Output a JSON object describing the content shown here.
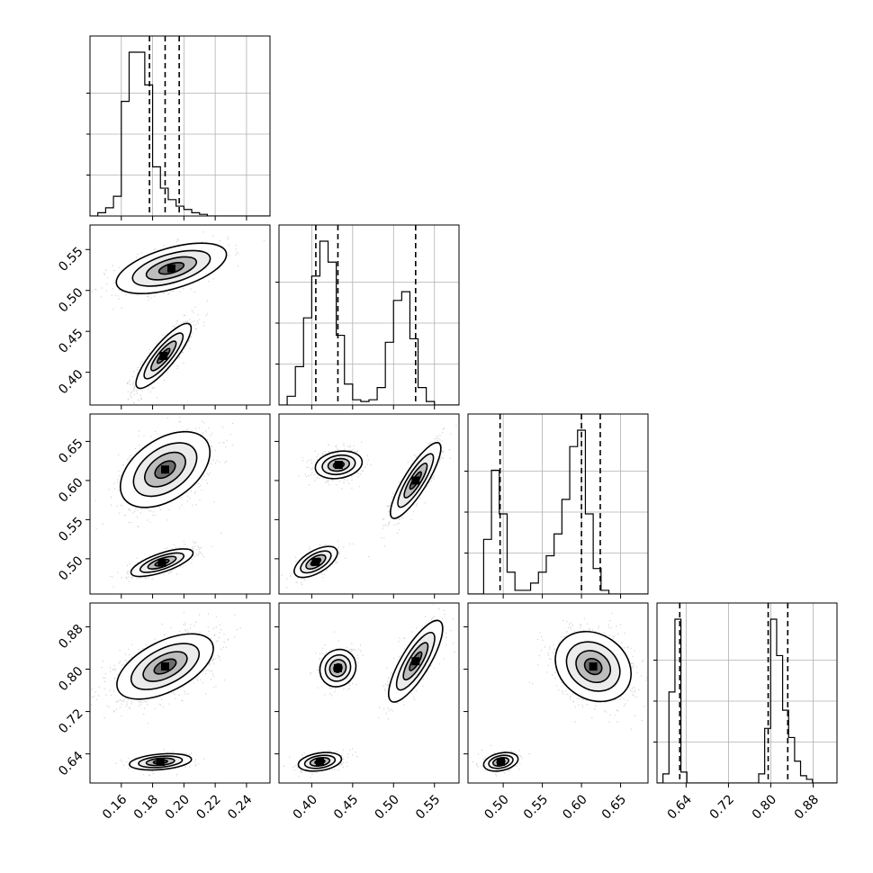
{
  "chart_data": {
    "type": "corner",
    "title": "",
    "parameters": [
      {
        "range": [
          0.14,
          0.255
        ],
        "ticks": [
          0.16,
          0.18,
          0.2,
          0.22,
          0.24
        ],
        "tick_labels": [
          "0.16",
          "0.18",
          "0.20",
          "0.22",
          "0.24"
        ]
      },
      {
        "range": [
          0.36,
          0.58
        ],
        "ticks": [
          0.4,
          0.45,
          0.5,
          0.55
        ],
        "tick_labels": [
          "0.40",
          "0.45",
          "0.50",
          "0.55"
        ]
      },
      {
        "range": [
          0.455,
          0.685
        ],
        "ticks": [
          0.5,
          0.55,
          0.6,
          0.65
        ],
        "tick_labels": [
          "0.50",
          "0.55",
          "0.60",
          "0.65"
        ]
      },
      {
        "range": [
          0.585,
          0.925
        ],
        "ticks": [
          0.64,
          0.72,
          0.8,
          0.88
        ],
        "tick_labels": [
          "0.64",
          "0.72",
          "0.80",
          "0.88"
        ]
      }
    ],
    "quantiles": [
      [
        0.178,
        0.188,
        0.197
      ],
      [
        0.405,
        0.432,
        0.527
      ],
      [
        0.496,
        0.6,
        0.624
      ],
      [
        0.628,
        0.795,
        0.832
      ]
    ],
    "histograms": [
      {
        "bin_start": 0.14,
        "bin_width": 0.005,
        "counts": [
          0,
          2,
          5,
          12,
          70,
          100,
          100,
          80,
          30,
          17,
          10,
          6,
          4,
          2,
          1,
          0,
          0,
          0,
          0,
          0,
          0,
          0,
          0
        ]
      },
      {
        "bin_start": 0.36,
        "bin_width": 0.01,
        "counts": [
          0,
          5,
          22,
          50,
          74,
          94,
          82,
          40,
          12,
          3,
          2,
          3,
          10,
          36,
          60,
          65,
          38,
          10,
          2,
          0,
          0,
          0
        ]
      },
      {
        "bin_start": 0.455,
        "bin_width": 0.01,
        "counts": [
          0,
          0,
          30,
          68,
          44,
          12,
          2,
          2,
          6,
          12,
          21,
          33,
          52,
          81,
          90,
          44,
          14,
          2,
          0,
          0,
          0,
          0,
          0
        ]
      },
      {
        "bin_start": 0.585,
        "bin_width": 0.0113,
        "counts": [
          0,
          5,
          50,
          90,
          6,
          0,
          0,
          0,
          0,
          0,
          0,
          0,
          0,
          0,
          0,
          0,
          0,
          5,
          30,
          90,
          70,
          40,
          25,
          12,
          4,
          2,
          0,
          0,
          0,
          0
        ]
      }
    ],
    "modes": [
      [
        {
          "mean": [
            0.187,
            0.42
          ],
          "sd": [
            0.008,
            0.018
          ],
          "rho": 0.85,
          "weight": 0.62
        },
        {
          "mean": [
            0.192,
            0.527
          ],
          "sd": [
            0.016,
            0.014
          ],
          "rho": 0.55,
          "weight": 0.38
        }
      ],
      [
        {
          "mean": [
            0.188,
            0.614
          ],
          "sd": [
            0.013,
            0.022
          ],
          "rho": 0.45,
          "weight": 0.6
        },
        {
          "mean": [
            0.186,
            0.495
          ],
          "sd": [
            0.009,
            0.008
          ],
          "rho": 0.7,
          "weight": 0.4
        }
      ],
      [
        {
          "mean": [
            0.433,
            0.62
          ],
          "sd": [
            0.013,
            0.008
          ],
          "rho": 0.2,
          "weight": 0.38
        },
        {
          "mean": [
            0.527,
            0.6
          ],
          "sd": [
            0.014,
            0.022
          ],
          "rho": 0.85,
          "weight": 0.38
        },
        {
          "mean": [
            0.405,
            0.496
          ],
          "sd": [
            0.012,
            0.009
          ],
          "rho": 0.6,
          "weight": 0.24
        }
      ],
      [
        {
          "mean": [
            0.188,
            0.805
          ],
          "sd": [
            0.014,
            0.028
          ],
          "rho": 0.55,
          "weight": 0.8
        },
        {
          "mean": [
            0.185,
            0.625
          ],
          "sd": [
            0.009,
            0.007
          ],
          "rho": 0.3,
          "weight": 0.2
        }
      ],
      [
        {
          "mean": [
            0.432,
            0.802
          ],
          "sd": [
            0.01,
            0.016
          ],
          "rho": 0.1,
          "weight": 0.4
        },
        {
          "mean": [
            0.527,
            0.815
          ],
          "sd": [
            0.015,
            0.035
          ],
          "rho": 0.8,
          "weight": 0.35
        },
        {
          "mean": [
            0.41,
            0.625
          ],
          "sd": [
            0.012,
            0.008
          ],
          "rho": 0.3,
          "weight": 0.25
        }
      ],
      [
        {
          "mean": [
            0.615,
            0.805
          ],
          "sd": [
            0.022,
            0.03
          ],
          "rho": -0.2,
          "weight": 0.8
        },
        {
          "mean": [
            0.497,
            0.625
          ],
          "sd": [
            0.01,
            0.008
          ],
          "rho": 0.3,
          "weight": 0.2
        }
      ]
    ]
  }
}
